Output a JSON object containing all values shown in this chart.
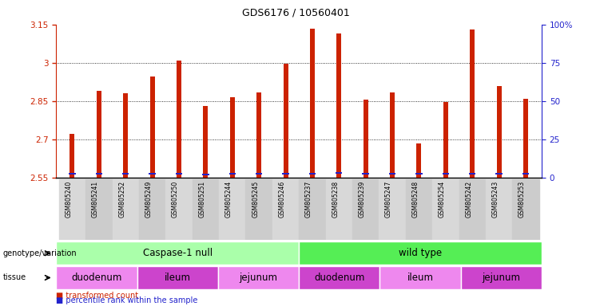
{
  "title": "GDS6176 / 10560401",
  "samples": [
    "GSM805240",
    "GSM805241",
    "GSM805252",
    "GSM805249",
    "GSM805250",
    "GSM805251",
    "GSM805244",
    "GSM805245",
    "GSM805246",
    "GSM805237",
    "GSM805238",
    "GSM805239",
    "GSM805247",
    "GSM805248",
    "GSM805254",
    "GSM805242",
    "GSM805243",
    "GSM805253"
  ],
  "transformed_count": [
    2.72,
    2.89,
    2.88,
    2.945,
    3.01,
    2.83,
    2.865,
    2.885,
    2.995,
    3.135,
    3.115,
    2.855,
    2.885,
    2.685,
    2.845,
    3.13,
    2.91,
    2.86
  ],
  "percentile_bottom": [
    2.561,
    2.562,
    2.562,
    2.562,
    2.561,
    2.56,
    2.562,
    2.561,
    2.561,
    2.561,
    2.564,
    2.562,
    2.562,
    2.561,
    2.561,
    2.562,
    2.562,
    2.561
  ],
  "percentile_height": [
    0.006,
    0.006,
    0.006,
    0.006,
    0.006,
    0.006,
    0.006,
    0.006,
    0.006,
    0.006,
    0.006,
    0.006,
    0.006,
    0.006,
    0.006,
    0.006,
    0.006,
    0.006
  ],
  "bar_color": "#cc2200",
  "percentile_color": "#2222cc",
  "ymin": 2.55,
  "ymax": 3.15,
  "yticks": [
    2.55,
    2.7,
    2.85,
    3.0,
    3.15
  ],
  "ytick_labels": [
    "2.55",
    "2.7",
    "2.85",
    "3",
    "3.15"
  ],
  "right_ytick_vals": [
    0,
    25,
    50,
    75,
    100
  ],
  "right_ytick_labels": [
    "0",
    "25",
    "50",
    "75",
    "100%"
  ],
  "genotype_groups": [
    {
      "label": "Caspase-1 null",
      "start": 0,
      "end": 9,
      "color": "#aaffaa"
    },
    {
      "label": "wild type",
      "start": 9,
      "end": 18,
      "color": "#55ee55"
    }
  ],
  "tissue_groups": [
    {
      "label": "duodenum",
      "start": 0,
      "end": 3,
      "color": "#ee88ee"
    },
    {
      "label": "ileum",
      "start": 3,
      "end": 6,
      "color": "#cc44cc"
    },
    {
      "label": "jejunum",
      "start": 6,
      "end": 9,
      "color": "#ee88ee"
    },
    {
      "label": "duodenum",
      "start": 9,
      "end": 12,
      "color": "#cc44cc"
    },
    {
      "label": "ileum",
      "start": 12,
      "end": 15,
      "color": "#ee88ee"
    },
    {
      "label": "jejunum",
      "start": 15,
      "end": 18,
      "color": "#cc44cc"
    }
  ],
  "legend_red": "transformed count",
  "legend_blue": "percentile rank within the sample",
  "genotype_label": "genotype/variation",
  "tissue_label": "tissue",
  "bar_width": 0.18,
  "figure_bg": "#ffffff"
}
